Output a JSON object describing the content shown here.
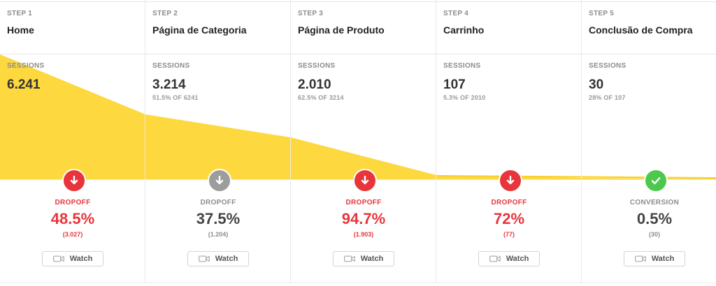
{
  "colors": {
    "accent": "#fdd93f",
    "dropoff_red": "#e8353c",
    "neutral_grey": "#9d9d9d",
    "conversion_green": "#4cc94c"
  },
  "steps": [
    {
      "step_label": "STEP 1",
      "name": "Home",
      "sessions_label": "SESSIONS",
      "sessions": "6.241",
      "sessions_pct": "",
      "metric_label": "DROPOFF",
      "metric_value": "48.5%",
      "metric_count": "(3.027)",
      "status": "dropoff",
      "status_color": "red",
      "icon": "arrow-down-icon",
      "watch_label": "Watch"
    },
    {
      "step_label": "STEP 2",
      "name": "Página de Categoria",
      "sessions_label": "SESSIONS",
      "sessions": "3.214",
      "sessions_pct": "51.5% OF 6241",
      "metric_label": "DROPOFF",
      "metric_value": "37.5%",
      "metric_count": "(1.204)",
      "status": "dropoff",
      "status_color": "grey",
      "icon": "arrow-down-icon",
      "watch_label": "Watch"
    },
    {
      "step_label": "STEP 3",
      "name": "Página de Produto",
      "sessions_label": "SESSIONS",
      "sessions": "2.010",
      "sessions_pct": "62.5% OF 3214",
      "metric_label": "DROPOFF",
      "metric_value": "94.7%",
      "metric_count": "(1.903)",
      "status": "dropoff",
      "status_color": "red",
      "icon": "arrow-down-icon",
      "watch_label": "Watch"
    },
    {
      "step_label": "STEP 4",
      "name": "Carrinho",
      "sessions_label": "SESSIONS",
      "sessions": "107",
      "sessions_pct": "5.3% OF 2010",
      "metric_label": "DROPOFF",
      "metric_value": "72%",
      "metric_count": "(77)",
      "status": "dropoff",
      "status_color": "red",
      "icon": "arrow-down-icon",
      "watch_label": "Watch"
    },
    {
      "step_label": "STEP 5",
      "name": "Conclusão de Compra",
      "sessions_label": "SESSIONS",
      "sessions": "30",
      "sessions_pct": "28% OF 107",
      "metric_label": "CONVERSION",
      "metric_value": "0.5%",
      "metric_count": "(30)",
      "status": "conversion",
      "status_color": "green",
      "icon": "check-icon",
      "watch_label": "Watch"
    }
  ]
}
